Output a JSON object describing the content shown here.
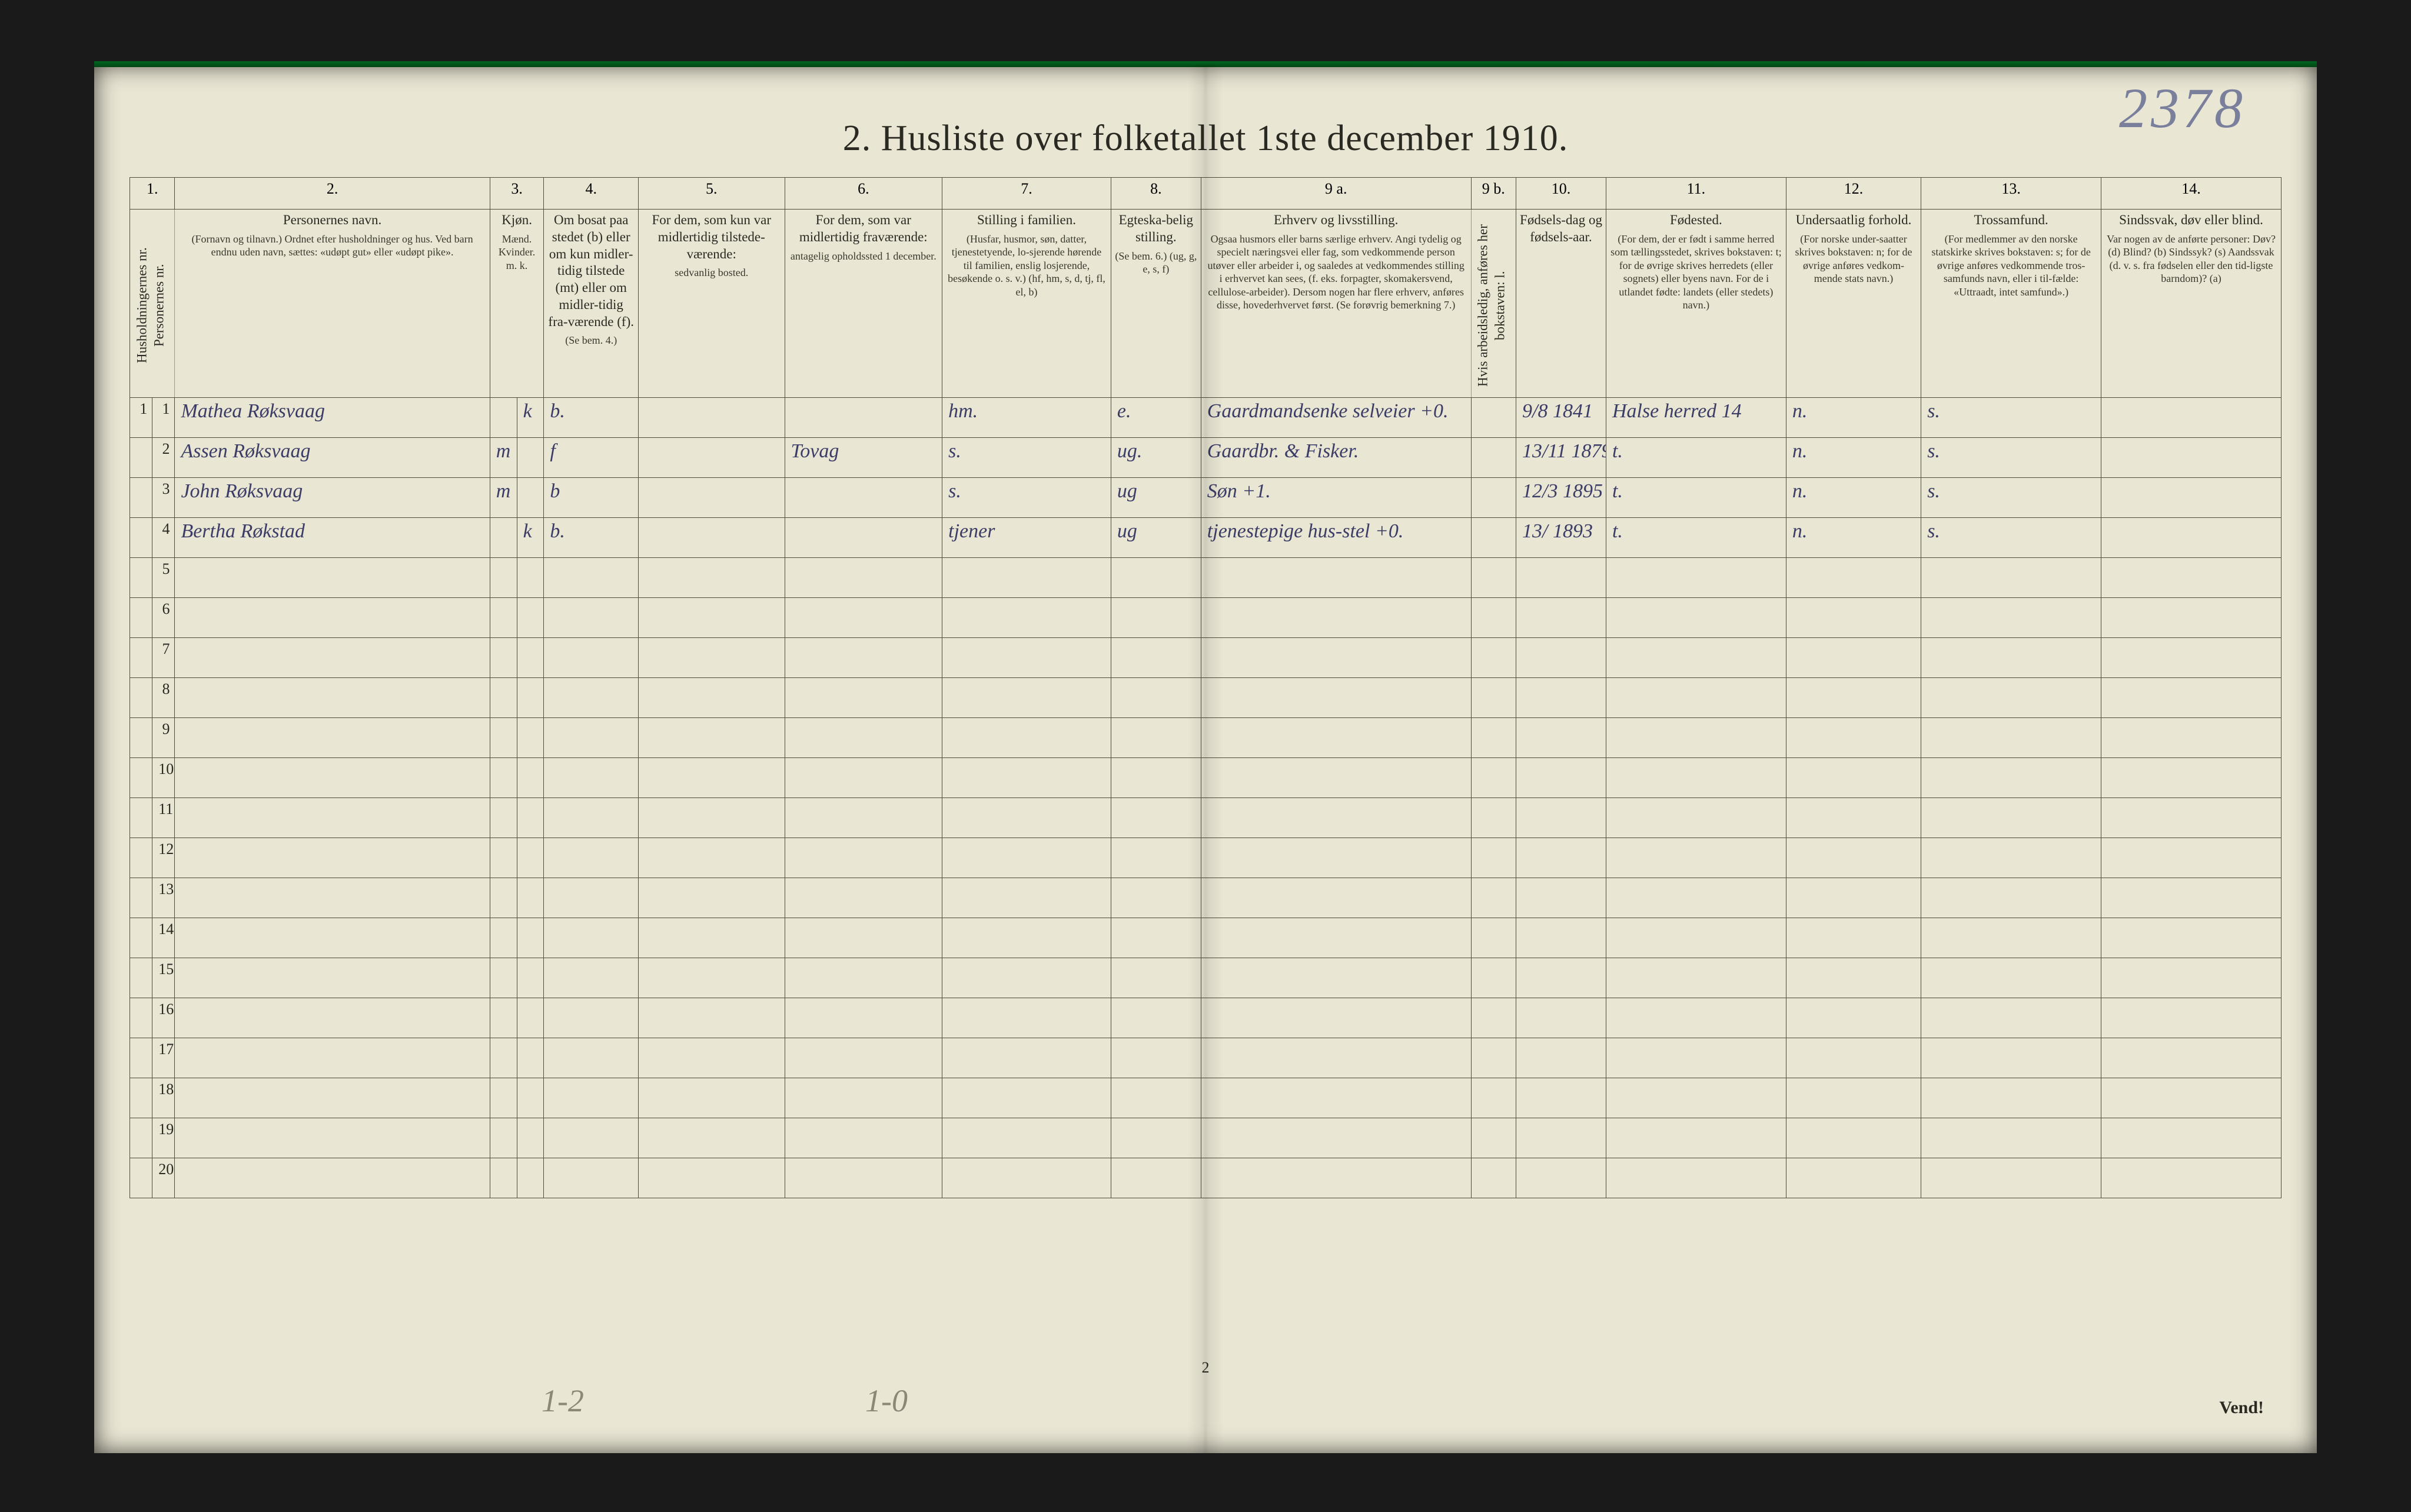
{
  "page": {
    "title": "2.  Husliste over folketallet 1ste december 1910.",
    "handwritten_topright": "2378",
    "printed_pagenum": "2",
    "vend": "Vend!",
    "pencil_left": "1-2",
    "pencil_mid": "1-0",
    "background_color": "#eae6d4",
    "ink_color": "#3b3d66",
    "print_color": "#2a2a22",
    "border_color": "#504c3a",
    "title_fontsize": 62,
    "header_fontsize": 20,
    "body_fontsize": 34
  },
  "columns": [
    {
      "num": "1.",
      "width_pct": 2.0,
      "main": "Husholdningernes nr.\nPersonernes nr.",
      "rotate": true
    },
    {
      "num": "2.",
      "width_pct": 14.0,
      "main": "Personernes navn.",
      "sub": "(Fornavn og tilnavn.)\nOrdnet efter husholdninger og hus.\nVed barn endnu uden navn, sættes: «udøpt gut» eller «udøpt pike»."
    },
    {
      "num": "3.",
      "width_pct": 2.4,
      "main": "Kjøn.",
      "sub": "Mænd.  Kvinder.\nm.  k.",
      "split": true
    },
    {
      "num": "4.",
      "width_pct": 4.2,
      "main": "Om bosat paa stedet (b) eller om kun midler-tidig tilstede (mt) eller om midler-tidig fra-værende (f).",
      "sub": "(Se bem. 4.)"
    },
    {
      "num": "5.",
      "width_pct": 6.5,
      "main": "For dem, som kun var midlertidig tilstede-værende:",
      "sub": "sedvanlig bosted."
    },
    {
      "num": "6.",
      "width_pct": 7.0,
      "main": "For dem, som var midlertidig fraværende:",
      "sub": "antagelig opholdssted 1 december."
    },
    {
      "num": "7.",
      "width_pct": 7.5,
      "main": "Stilling i familien.",
      "sub": "(Husfar, husmor, søn, datter, tjenestetyende, lo-sjerende hørende til familien, enslig losjerende, besøkende o. s. v.)\n(hf, hm, s, d, tj, fl, el, b)"
    },
    {
      "num": "8.",
      "width_pct": 4.0,
      "main": "Egteska-belig stilling.",
      "sub": "(Se bem. 6.)\n(ug, g, e, s, f)"
    },
    {
      "num": "9 a.",
      "width_pct": 12.0,
      "main": "Erhverv og livsstilling.",
      "sub": "Ogsaa husmors eller barns særlige erhverv. Angi tydelig og specielt næringsveі eller fag, som vedkommende person utøver eller arbeider i, og saaledes at vedkommendes stilling i erhvervet kan sees, (f. eks. forpagter, skomakersvend, cellulose-arbeider). Dersom nogen har flere erhverv, anføres disse, hovederhvervet først.\n(Se forøvrig bemerkning 7.)"
    },
    {
      "num": "9 b.",
      "width_pct": 2.0,
      "main": "Hvis arbeidsledig, anføres her bokstaven: l.",
      "rotate": true
    },
    {
      "num": "10.",
      "width_pct": 4.0,
      "main": "Fødsels-dag og fødsels-aar."
    },
    {
      "num": "11.",
      "width_pct": 8.0,
      "main": "Fødested.",
      "sub": "(For dem, der er født i samme herred som tællingsstedet, skrives bokstaven: t; for de øvrige skrives herredets (eller sognets) eller byens navn. For de i utlandet fødte: landets (eller stedets) navn.)"
    },
    {
      "num": "12.",
      "width_pct": 6.0,
      "main": "Undersaatlig forhold.",
      "sub": "(For norske under-saatter skrives bokstaven: n; for de øvrige anføres vedkom-mende stats navn.)"
    },
    {
      "num": "13.",
      "width_pct": 8.0,
      "main": "Trossamfund.",
      "sub": "(For medlemmer av den norske statskirke skrives bokstaven: s; for de øvrige anføres vedkommende tros-samfunds navn, eller i til-fælde: «Uttraadt, intet samfund».)"
    },
    {
      "num": "14.",
      "width_pct": 8.0,
      "main": "Sindssvak, døv eller blind.",
      "sub": "Var nogen av de anførte personer:\nDøv?      (d)\nBlind?    (b)\nSindssyk? (s)\nAandssvak (d. v. s. fra fødselen eller den tid-ligste barndom)?  (a)"
    }
  ],
  "num_body_rows": 20,
  "entries": [
    {
      "hh": "1",
      "pn": "1",
      "name": "Mathea Røksvaag",
      "sex": "k",
      "res": "b.",
      "c5": "",
      "c6": "",
      "famrole": "hm.",
      "marital": "e.",
      "occupation": "Gaardmandsenke   selveier +0.",
      "c9b": "",
      "birth": "9/8 1841",
      "birthplace": "Halse herred   14",
      "nationality": "n.",
      "religion": "s.",
      "c14": ""
    },
    {
      "hh": "",
      "pn": "2",
      "name": "Assen Røksvaag",
      "sex": "m",
      "res": "f",
      "c5": "",
      "c6": "Tovag",
      "famrole": "s.",
      "marital": "ug.",
      "occupation": "Gaardbr. & Fisker.",
      "c9b": "",
      "birth": "13/11 1879",
      "birthplace": "t.",
      "nationality": "n.",
      "religion": "s.",
      "c14": ""
    },
    {
      "hh": "",
      "pn": "3",
      "name": "John Røksvaag",
      "sex": "m",
      "res": "b",
      "c5": "",
      "c6": "",
      "famrole": "s.",
      "marital": "ug",
      "occupation": "Søn          +1.",
      "c9b": "",
      "birth": "12/3 1895",
      "birthplace": "t.",
      "nationality": "n.",
      "religion": "s.",
      "c14": ""
    },
    {
      "hh": "",
      "pn": "4",
      "name": "Bertha Røkstad",
      "sex": "k",
      "res": "b.",
      "c5": "",
      "c6": "",
      "famrole": "tjener",
      "marital": "ug",
      "occupation": "tjenestepige  hus-stel +0.",
      "c9b": "",
      "birth": "13/ 1893",
      "birthplace": "t.",
      "nationality": "n.",
      "religion": "s.",
      "c14": ""
    }
  ]
}
